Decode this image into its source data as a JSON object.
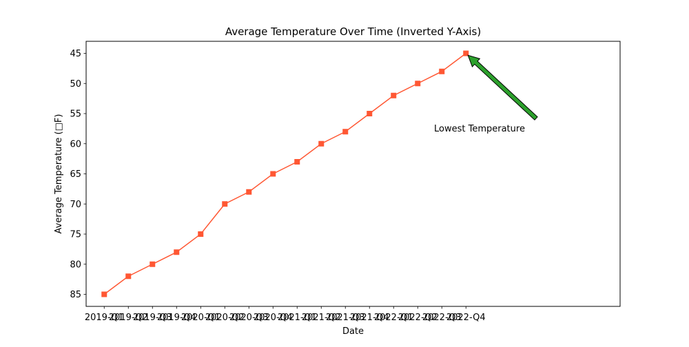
{
  "chart_data": {
    "type": "line",
    "title": "Average Temperature Over Time (Inverted Y-Axis)",
    "xlabel": "Date",
    "ylabel": "Average Temperature (□F)",
    "categories": [
      "2019-Q1",
      "2019-Q2",
      "2019-Q3",
      "2019-Q4",
      "2020-Q1",
      "2020-Q2",
      "2020-Q3",
      "2020-Q4",
      "2021-Q1",
      "2021-Q2",
      "2021-Q3",
      "2021-Q4",
      "2022-Q1",
      "2022-Q2",
      "2022-Q3",
      "2022-Q4"
    ],
    "series": [
      {
        "values": [
          85,
          82,
          80,
          78,
          75,
          70,
          68,
          65,
          63,
          60,
          58,
          55,
          52,
          50,
          48,
          45
        ]
      }
    ],
    "y_ticks": [
      45,
      50,
      55,
      60,
      65,
      70,
      75,
      80,
      85
    ],
    "ylim": [
      87.0,
      43.0
    ],
    "y_inverted": true,
    "grid": false,
    "annotation": {
      "text": "Lowest Temperature",
      "target": {
        "x": "2022-Q4",
        "y": 45
      }
    },
    "colors": {
      "line": "#ff5733",
      "arrow_fill": "#2ca02c",
      "arrow_edge": "#000000"
    },
    "marker": "square"
  }
}
